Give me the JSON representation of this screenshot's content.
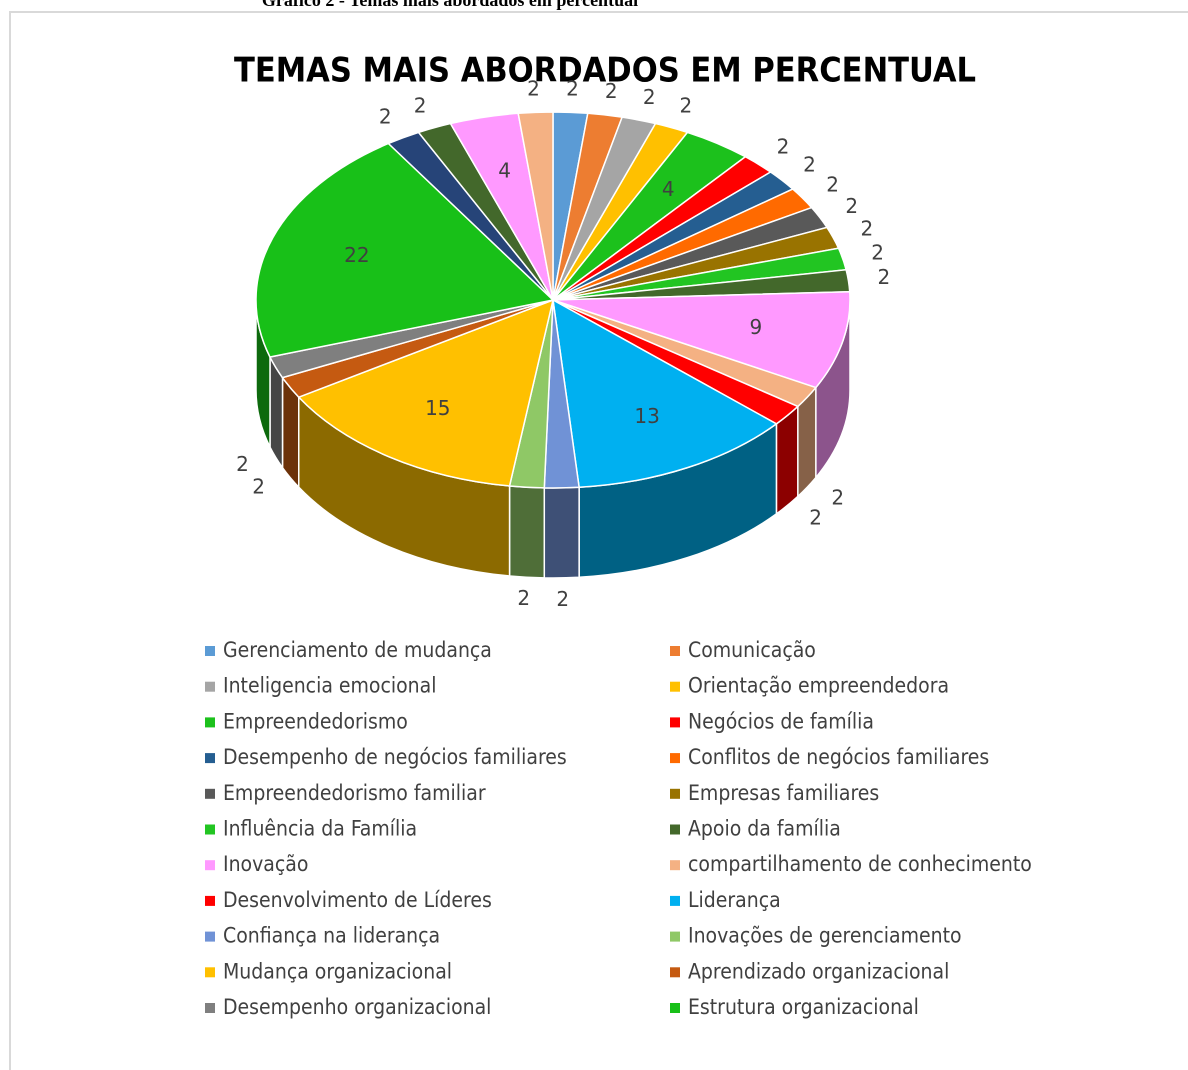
{
  "caption": "Gráfico 2 - Temas mais abordados em percentual",
  "chart_data": {
    "type": "pie3d",
    "title": "TEMAS MAIS ABORDADOS EM PERCENTUAL",
    "categories": [
      "Gerenciamento de mudança",
      "Comunicação",
      "Inteligencia emocional",
      "Orientação empreendedora",
      "Empreendedorismo",
      "Negócios de família",
      "Desempenho de negócios familiares",
      "Conflitos de negócios familiares",
      "Empreendedorismo familiar",
      "Empresas familiares",
      "Influência da Família",
      "Apoio da família",
      "Inovação",
      "compartilhamento de conhecimento",
      "Desenvolvimento de Líderes",
      "Liderança",
      "Confiança na liderança",
      "Inovações de gerenciamento",
      "Mudança organizacional",
      "Aprendizado organizacional",
      "Desempenho organizacional",
      "Estrutura organizacional",
      null,
      null,
      null,
      null
    ],
    "values": [
      2,
      2,
      2,
      2,
      4,
      2,
      2,
      2,
      2,
      2,
      2,
      2,
      9,
      2,
      2,
      13,
      2,
      2,
      15,
      2,
      2,
      22,
      2,
      2,
      4,
      2
    ],
    "colors": [
      "#5b9bd5",
      "#ed7d31",
      "#a5a5a5",
      "#ffc000",
      "#1cc11c",
      "#ff0000",
      "#255e91",
      "#ff6a00",
      "#595959",
      "#997300",
      "#22c522",
      "#43682b",
      "#ff99ff",
      "#f4b183",
      "#ff0000",
      "#00b0f0",
      "#7092d6",
      "#8fc866",
      "#ffc000",
      "#c55a11",
      "#7f7f7f",
      "#18c018",
      "#264478",
      "#43682b",
      "#ff99ff",
      "#f4b183"
    ],
    "legend": "bottom"
  }
}
